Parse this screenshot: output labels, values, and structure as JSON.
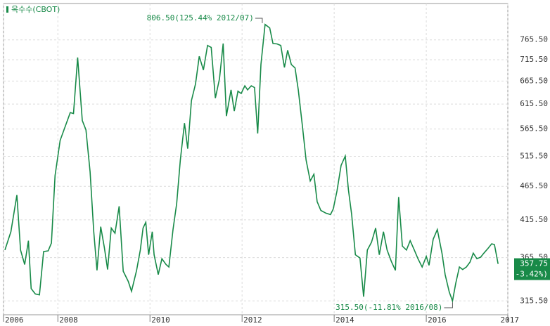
{
  "chart_data": {
    "type": "line",
    "log_scale": true,
    "grid": true,
    "xlim": [
      2006.82,
      2017.77
    ],
    "ylim": [
      301,
      866
    ],
    "xticks": [
      {
        "value": 2006.82,
        "label": "2006"
      },
      2008,
      2010,
      2012,
      2014,
      2016,
      {
        "value": 2017.77,
        "label": "2017"
      }
    ],
    "yticks": [
      {
        "value": 315.5,
        "label": "315.50"
      },
      {
        "value": 365.5,
        "label": "365.50"
      },
      {
        "value": 415.5,
        "label": "415.50"
      },
      {
        "value": 465.5,
        "label": "465.50"
      },
      {
        "value": 515.5,
        "label": "515.50"
      },
      {
        "value": 565.5,
        "label": "565.50"
      },
      {
        "value": 615.5,
        "label": "615.50"
      },
      {
        "value": 665.5,
        "label": "665.50"
      },
      {
        "value": 715.5,
        "label": "715.50"
      },
      {
        "value": 765.5,
        "label": "765.50"
      }
    ],
    "x": [
      2006.85,
      2006.98,
      2007.11,
      2007.19,
      2007.28,
      2007.36,
      2007.42,
      2007.51,
      2007.6,
      2007.69,
      2007.79,
      2007.86,
      2007.94,
      2008.05,
      2008.17,
      2008.27,
      2008.34,
      2008.43,
      2008.53,
      2008.61,
      2008.7,
      2008.78,
      2008.85,
      2008.93,
      2009.01,
      2009.08,
      2009.16,
      2009.24,
      2009.33,
      2009.42,
      2009.53,
      2009.6,
      2009.71,
      2009.79,
      2009.85,
      2009.91,
      2009.97,
      2010.05,
      2010.09,
      2010.18,
      2010.26,
      2010.35,
      2010.41,
      2010.5,
      2010.58,
      2010.66,
      2010.75,
      2010.82,
      2010.9,
      2010.99,
      2011.07,
      2011.16,
      2011.25,
      2011.33,
      2011.42,
      2011.51,
      2011.59,
      2011.66,
      2011.76,
      2011.83,
      2011.91,
      2011.98,
      2012.06,
      2012.12,
      2012.2,
      2012.27,
      2012.34,
      2012.41,
      2012.5,
      2012.6,
      2012.67,
      2012.76,
      2012.84,
      2012.92,
      2012.99,
      2013.07,
      2013.15,
      2013.22,
      2013.31,
      2013.39,
      2013.48,
      2013.56,
      2013.63,
      2013.71,
      2013.82,
      2013.92,
      2013.98,
      2014.06,
      2014.15,
      2014.24,
      2014.31,
      2014.38,
      2014.46,
      2014.56,
      2014.64,
      2014.72,
      2014.81,
      2014.9,
      2014.98,
      2015.07,
      2015.15,
      2015.24,
      2015.33,
      2015.4,
      2015.48,
      2015.57,
      2015.65,
      2015.74,
      2015.82,
      2015.91,
      2016.0,
      2016.06,
      2016.15,
      2016.24,
      2016.34,
      2016.41,
      2016.5,
      2016.57,
      2016.64,
      2016.72,
      2016.79,
      2016.87,
      2016.95,
      2017.02,
      2017.1,
      2017.18,
      2017.25,
      2017.34,
      2017.42,
      2017.48,
      2017.56
    ],
    "series": [
      {
        "name": "옥수수(CBOT)",
        "color": "#188a48",
        "values": [
          375,
          399,
          452,
          375,
          357,
          387,
          329,
          323,
          322,
          373,
          374,
          384,
          483,
          544,
          573,
          598,
          596,
          721,
          582,
          564,
          489,
          399,
          350,
          406,
          378,
          351,
          404,
          397,
          435,
          349,
          337,
          326,
          350,
          375,
          404,
          412,
          369,
          399,
          369,
          345,
          364,
          357,
          354,
          402,
          439,
          509,
          577,
          529,
          623,
          659,
          724,
          691,
          751,
          746,
          628,
          671,
          756,
          591,
          646,
          601,
          643,
          638,
          655,
          646,
          655,
          651,
          557,
          704,
          806.5,
          797,
          756,
          755,
          751,
          697,
          739,
          704,
          696,
          646,
          571,
          509,
          474,
          485,
          442,
          429,
          425,
          423,
          431,
          458,
          500,
          516,
          460,
          423,
          369,
          365,
          320,
          375,
          385,
          404,
          369,
          399,
          375,
          361,
          350,
          449,
          380,
          375,
          387,
          375,
          364,
          354,
          367,
          356,
          389,
          402,
          371,
          345,
          325,
          315.5,
          335,
          354,
          351,
          354,
          360,
          371,
          364,
          366,
          371,
          377,
          383,
          382,
          357.75
        ]
      }
    ],
    "annotations": {
      "max": "806.50(125.44% 2012/07)",
      "min": "315.50(-11.81% 2016/08)",
      "last": [
        "357.75",
        "(-3.42%)"
      ]
    }
  }
}
